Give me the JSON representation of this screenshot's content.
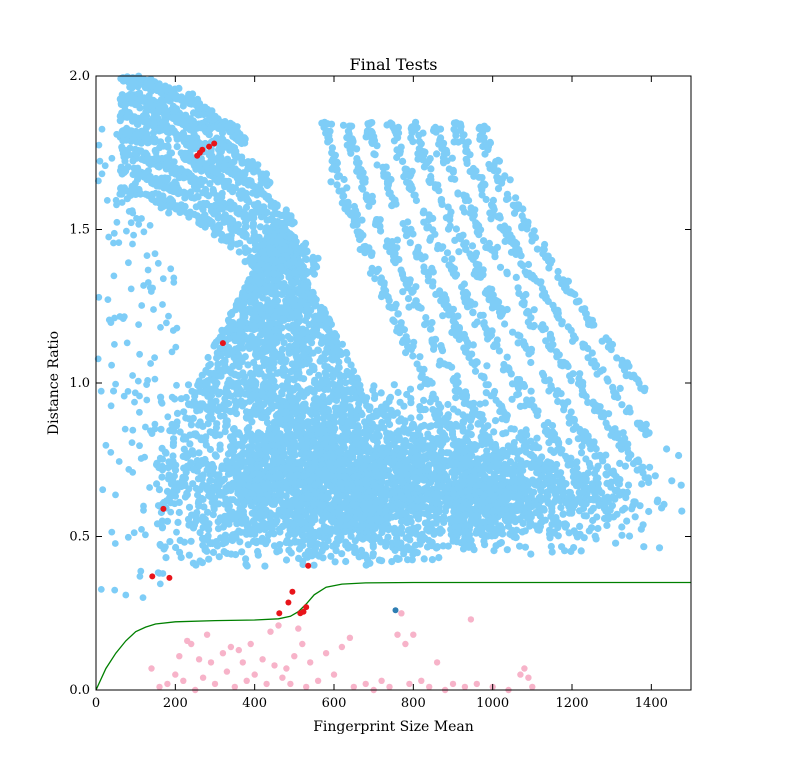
{
  "chart_data": {
    "type": "scatter",
    "title": "Final Tests",
    "xlabel": "Fingerprint Size Mean",
    "ylabel": "Distance Ratio",
    "xlim": [
      0,
      1500
    ],
    "ylim": [
      0.0,
      2.0
    ],
    "x_ticks": [
      "0",
      "200",
      "400",
      "600",
      "800",
      "1000",
      "1200",
      "1400"
    ],
    "y_ticks": [
      "0.0",
      "0.5",
      "1.0",
      "1.5",
      "2.0"
    ],
    "grid": false,
    "legend": "none",
    "colors": {
      "main_cloud": "#7ecdf7",
      "red_points": "#e8141a",
      "pink_points": "#f7b3c9",
      "blue_point": "#2e7eb3",
      "threshold_curve": "#008000"
    },
    "series": [
      {
        "values": [
          [
            170,
            0.59
          ],
          [
            142,
            0.37
          ],
          [
            185,
            0.365
          ],
          [
            320,
            1.13
          ],
          [
            255,
            1.74
          ],
          [
            262,
            1.75
          ],
          [
            268,
            1.76
          ],
          [
            285,
            1.77
          ],
          [
            298,
            1.78
          ],
          [
            462,
            0.25
          ],
          [
            485,
            0.285
          ],
          [
            495,
            0.32
          ],
          [
            515,
            0.25
          ],
          [
            523,
            0.255
          ],
          [
            530,
            0.27
          ],
          [
            535,
            0.405
          ]
        ]
      },
      {
        "values": [
          [
            140,
            0.07
          ],
          [
            160,
            0.01
          ],
          [
            180,
            0.02
          ],
          [
            200,
            0.05
          ],
          [
            210,
            0.11
          ],
          [
            220,
            0.03
          ],
          [
            230,
            0.16
          ],
          [
            240,
            0.15
          ],
          [
            250,
            0.0
          ],
          [
            260,
            0.1
          ],
          [
            270,
            0.04
          ],
          [
            280,
            0.18
          ],
          [
            290,
            0.09
          ],
          [
            300,
            0.02
          ],
          [
            320,
            0.12
          ],
          [
            330,
            0.06
          ],
          [
            340,
            0.14
          ],
          [
            350,
            0.01
          ],
          [
            360,
            0.13
          ],
          [
            370,
            0.09
          ],
          [
            380,
            0.03
          ],
          [
            390,
            0.15
          ],
          [
            400,
            0.05
          ],
          [
            420,
            0.1
          ],
          [
            430,
            0.02
          ],
          [
            440,
            0.19
          ],
          [
            450,
            0.08
          ],
          [
            460,
            0.21
          ],
          [
            470,
            0.04
          ],
          [
            480,
            0.07
          ],
          [
            490,
            0.02
          ],
          [
            500,
            0.11
          ],
          [
            510,
            0.2
          ],
          [
            520,
            0.15
          ],
          [
            530,
            0.01
          ],
          [
            540,
            0.09
          ],
          [
            560,
            0.03
          ],
          [
            580,
            0.12
          ],
          [
            600,
            0.05
          ],
          [
            620,
            0.14
          ],
          [
            640,
            0.17
          ],
          [
            650,
            0.01
          ],
          [
            680,
            0.02
          ],
          [
            700,
            0.0
          ],
          [
            720,
            0.03
          ],
          [
            740,
            0.01
          ],
          [
            760,
            0.18
          ],
          [
            770,
            0.25
          ],
          [
            780,
            0.15
          ],
          [
            790,
            0.02
          ],
          [
            800,
            0.18
          ],
          [
            820,
            0.03
          ],
          [
            840,
            0.01
          ],
          [
            860,
            0.09
          ],
          [
            880,
            0.0
          ],
          [
            900,
            0.02
          ],
          [
            930,
            0.01
          ],
          [
            945,
            0.23
          ],
          [
            960,
            0.02
          ],
          [
            1000,
            0.01
          ],
          [
            1040,
            0.0
          ],
          [
            1070,
            0.05
          ],
          [
            1080,
            0.07
          ],
          [
            1090,
            0.04
          ],
          [
            1100,
            0.01
          ]
        ]
      },
      {
        "values": [
          [
            755,
            0.26
          ]
        ]
      }
    ],
    "threshold_curve": [
      [
        0,
        0.0
      ],
      [
        25,
        0.07
      ],
      [
        50,
        0.12
      ],
      [
        75,
        0.16
      ],
      [
        100,
        0.19
      ],
      [
        125,
        0.205
      ],
      [
        150,
        0.215
      ],
      [
        200,
        0.222
      ],
      [
        300,
        0.226
      ],
      [
        400,
        0.228
      ],
      [
        460,
        0.232
      ],
      [
        490,
        0.24
      ],
      [
        510,
        0.255
      ],
      [
        530,
        0.28
      ],
      [
        550,
        0.31
      ],
      [
        580,
        0.335
      ],
      [
        620,
        0.345
      ],
      [
        680,
        0.349
      ],
      [
        800,
        0.35
      ],
      [
        1000,
        0.35
      ],
      [
        1200,
        0.35
      ],
      [
        1500,
        0.35
      ]
    ]
  }
}
